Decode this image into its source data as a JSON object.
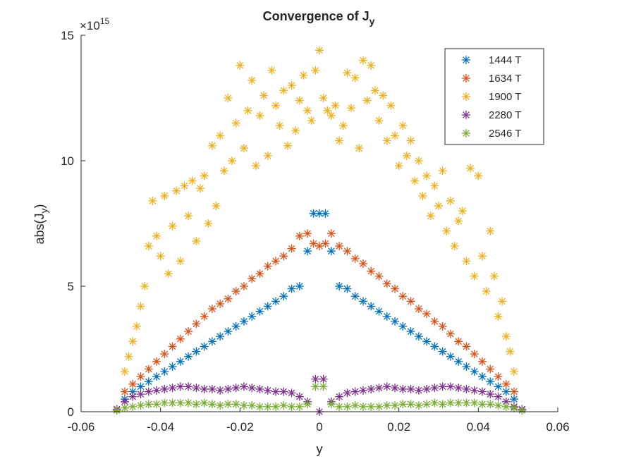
{
  "chart_data": {
    "type": "scatter",
    "title": "Convergence of J",
    "title_subscript": "y",
    "xlabel": "y",
    "ylabel": "abs(J",
    "ylabel_subscript": "y",
    "ylabel_suffix": ")",
    "y_exponent": "15",
    "y_exponent_prefix": "×10",
    "xlim": [
      -0.06,
      0.06
    ],
    "ylim": [
      0,
      15
    ],
    "y_scale_note": "values in units of 1e15",
    "xticks": [
      -0.06,
      -0.04,
      -0.02,
      0,
      0.02,
      0.04,
      0.06
    ],
    "xtick_labels": [
      "-0.06",
      "-0.04",
      "-0.02",
      "0",
      "0.02",
      "0.04",
      "0.06"
    ],
    "yticks": [
      0,
      5,
      10,
      15
    ],
    "ytick_labels": [
      "0",
      "5",
      "10",
      "15"
    ],
    "grid": false,
    "marker": "*",
    "legend_position": "top-right",
    "series": [
      {
        "name": "1444 T",
        "color": "#0072BD",
        "x": [
          -0.049,
          -0.047,
          -0.045,
          -0.043,
          -0.041,
          -0.039,
          -0.037,
          -0.035,
          -0.033,
          -0.031,
          -0.029,
          -0.027,
          -0.025,
          -0.023,
          -0.021,
          -0.019,
          -0.017,
          -0.015,
          -0.013,
          -0.011,
          -0.009,
          -0.007,
          -0.005,
          -0.003,
          -0.0015,
          0,
          0.0015,
          0.003,
          0.005,
          0.007,
          0.009,
          0.011,
          0.013,
          0.015,
          0.017,
          0.019,
          0.021,
          0.023,
          0.025,
          0.027,
          0.029,
          0.031,
          0.033,
          0.035,
          0.037,
          0.039,
          0.041,
          0.043,
          0.045,
          0.047,
          0.049
        ],
        "y": [
          0.5,
          0.8,
          1.0,
          1.2,
          1.4,
          1.6,
          1.8,
          2.0,
          2.2,
          2.4,
          2.6,
          2.8,
          3.0,
          3.2,
          3.4,
          3.6,
          3.8,
          4.0,
          4.2,
          4.4,
          4.6,
          4.9,
          5.0,
          6.4,
          7.9,
          7.9,
          7.9,
          6.4,
          5.0,
          4.9,
          4.6,
          4.4,
          4.2,
          4.0,
          3.8,
          3.6,
          3.4,
          3.2,
          3.0,
          2.8,
          2.6,
          2.4,
          2.2,
          2.0,
          1.8,
          1.6,
          1.4,
          1.2,
          1.0,
          0.8,
          0.5
        ]
      },
      {
        "name": "1634 T",
        "color": "#D95319",
        "x": [
          -0.049,
          -0.047,
          -0.045,
          -0.043,
          -0.041,
          -0.039,
          -0.037,
          -0.035,
          -0.033,
          -0.031,
          -0.029,
          -0.027,
          -0.025,
          -0.023,
          -0.021,
          -0.019,
          -0.017,
          -0.015,
          -0.013,
          -0.011,
          -0.009,
          -0.007,
          -0.005,
          -0.003,
          -0.0015,
          0,
          0.0015,
          0.003,
          0.005,
          0.007,
          0.009,
          0.011,
          0.013,
          0.015,
          0.017,
          0.019,
          0.021,
          0.023,
          0.025,
          0.027,
          0.029,
          0.031,
          0.033,
          0.035,
          0.037,
          0.039,
          0.041,
          0.043,
          0.045,
          0.047,
          0.049
        ],
        "y": [
          0.8,
          1.1,
          1.4,
          1.7,
          2.0,
          2.3,
          2.6,
          2.9,
          3.2,
          3.5,
          3.8,
          4.1,
          4.3,
          4.5,
          4.8,
          5.0,
          5.3,
          5.5,
          5.8,
          6.0,
          6.2,
          6.5,
          7.0,
          7.1,
          6.7,
          6.6,
          6.7,
          7.1,
          6.6,
          6.4,
          6.1,
          5.9,
          5.6,
          5.4,
          5.1,
          4.9,
          4.6,
          4.4,
          4.1,
          3.9,
          3.6,
          3.4,
          3.1,
          2.8,
          2.6,
          2.3,
          2.0,
          1.7,
          1.4,
          1.1,
          0.8
        ]
      },
      {
        "name": "1900 T",
        "color": "#EDB120",
        "x": [
          -0.049,
          -0.048,
          -0.047,
          -0.046,
          -0.045,
          -0.044,
          -0.043,
          -0.042,
          -0.041,
          -0.04,
          -0.039,
          -0.038,
          -0.037,
          -0.036,
          -0.035,
          -0.034,
          -0.033,
          -0.032,
          -0.031,
          -0.03,
          -0.029,
          -0.028,
          -0.027,
          -0.026,
          -0.025,
          -0.024,
          -0.023,
          -0.022,
          -0.021,
          -0.02,
          -0.019,
          -0.018,
          -0.017,
          -0.016,
          -0.015,
          -0.014,
          -0.013,
          -0.012,
          -0.011,
          -0.01,
          -0.009,
          -0.008,
          -0.007,
          -0.006,
          -0.005,
          -0.004,
          -0.003,
          -0.002,
          -0.001,
          0,
          0.001,
          0.002,
          0.003,
          0.004,
          0.005,
          0.006,
          0.007,
          0.008,
          0.009,
          0.01,
          0.011,
          0.012,
          0.013,
          0.014,
          0.015,
          0.016,
          0.017,
          0.018,
          0.019,
          0.02,
          0.021,
          0.022,
          0.023,
          0.024,
          0.025,
          0.026,
          0.027,
          0.028,
          0.029,
          0.03,
          0.031,
          0.032,
          0.033,
          0.034,
          0.035,
          0.036,
          0.037,
          0.038,
          0.039,
          0.04,
          0.041,
          0.042,
          0.043,
          0.044,
          0.045,
          0.046,
          0.047,
          0.048,
          0.049
        ],
        "y": [
          1.6,
          2.2,
          2.8,
          3.4,
          4.2,
          5.0,
          6.6,
          8.4,
          7.0,
          6.2,
          8.6,
          5.5,
          7.4,
          8.8,
          6.0,
          9.0,
          7.8,
          9.2,
          6.8,
          8.9,
          9.4,
          7.5,
          10.6,
          8.2,
          11.0,
          9.6,
          12.5,
          10.0,
          11.5,
          13.8,
          10.5,
          12.0,
          13.2,
          9.8,
          11.8,
          12.6,
          10.2,
          13.6,
          12.2,
          11.4,
          12.8,
          10.6,
          13.0,
          11.2,
          12.4,
          13.4,
          12.0,
          11.6,
          13.6,
          14.4,
          12.5,
          12.0,
          11.8,
          12.2,
          10.8,
          11.4,
          13.5,
          12.1,
          13.3,
          10.5,
          14.0,
          12.4,
          13.8,
          12.8,
          11.6,
          12.6,
          10.8,
          12.2,
          11.0,
          9.8,
          11.4,
          10.2,
          10.8,
          9.2,
          10.0,
          8.6,
          9.4,
          7.8,
          9.0,
          8.2,
          9.6,
          7.2,
          8.4,
          6.6,
          7.6,
          8.0,
          6.0,
          9.7,
          5.4,
          9.4,
          6.2,
          4.8,
          7.2,
          5.4,
          3.8,
          4.4,
          3.0,
          2.4,
          1.6
        ]
      },
      {
        "name": "2280 T",
        "color": "#7E2F8E",
        "x": [
          -0.051,
          -0.049,
          -0.047,
          -0.045,
          -0.043,
          -0.041,
          -0.039,
          -0.037,
          -0.035,
          -0.033,
          -0.031,
          -0.029,
          -0.027,
          -0.025,
          -0.023,
          -0.021,
          -0.019,
          -0.017,
          -0.015,
          -0.013,
          -0.011,
          -0.009,
          -0.007,
          -0.005,
          -0.003,
          -0.001,
          0,
          0.001,
          0.003,
          0.005,
          0.007,
          0.009,
          0.011,
          0.013,
          0.015,
          0.017,
          0.019,
          0.021,
          0.023,
          0.025,
          0.027,
          0.029,
          0.031,
          0.033,
          0.035,
          0.037,
          0.039,
          0.041,
          0.043,
          0.045,
          0.047,
          0.049,
          0.051
        ],
        "y": [
          0.1,
          0.4,
          0.6,
          0.7,
          0.8,
          0.85,
          0.9,
          0.95,
          1.0,
          1.0,
          0.95,
          0.9,
          0.9,
          0.85,
          0.9,
          0.95,
          1.0,
          0.95,
          0.9,
          0.85,
          0.8,
          0.8,
          0.75,
          0.6,
          0.4,
          1.3,
          0.0,
          1.3,
          0.4,
          0.6,
          0.75,
          0.8,
          0.85,
          0.9,
          0.95,
          1.0,
          0.95,
          0.9,
          0.9,
          0.85,
          0.9,
          0.95,
          1.0,
          1.0,
          0.95,
          0.9,
          0.85,
          0.8,
          0.7,
          0.6,
          0.4,
          0.2,
          0.1
        ]
      },
      {
        "name": "2546 T",
        "color": "#77AC30",
        "x": [
          -0.051,
          -0.049,
          -0.047,
          -0.045,
          -0.043,
          -0.041,
          -0.039,
          -0.037,
          -0.035,
          -0.033,
          -0.031,
          -0.029,
          -0.027,
          -0.025,
          -0.023,
          -0.021,
          -0.019,
          -0.017,
          -0.015,
          -0.013,
          -0.011,
          -0.009,
          -0.007,
          -0.005,
          -0.003,
          -0.001,
          0.001,
          0.003,
          0.005,
          0.007,
          0.009,
          0.011,
          0.013,
          0.015,
          0.017,
          0.019,
          0.021,
          0.023,
          0.025,
          0.027,
          0.029,
          0.031,
          0.033,
          0.035,
          0.037,
          0.039,
          0.041,
          0.043,
          0.045,
          0.047,
          0.049,
          0.051
        ],
        "y": [
          0.05,
          0.15,
          0.2,
          0.25,
          0.3,
          0.3,
          0.35,
          0.35,
          0.35,
          0.35,
          0.3,
          0.35,
          0.3,
          0.25,
          0.3,
          0.3,
          0.25,
          0.25,
          0.2,
          0.2,
          0.2,
          0.25,
          0.2,
          0.2,
          0.3,
          1.0,
          1.0,
          0.3,
          0.2,
          0.2,
          0.25,
          0.2,
          0.2,
          0.2,
          0.25,
          0.25,
          0.3,
          0.3,
          0.25,
          0.3,
          0.35,
          0.3,
          0.35,
          0.35,
          0.35,
          0.35,
          0.3,
          0.3,
          0.25,
          0.2,
          0.15,
          0.05
        ]
      }
    ]
  }
}
